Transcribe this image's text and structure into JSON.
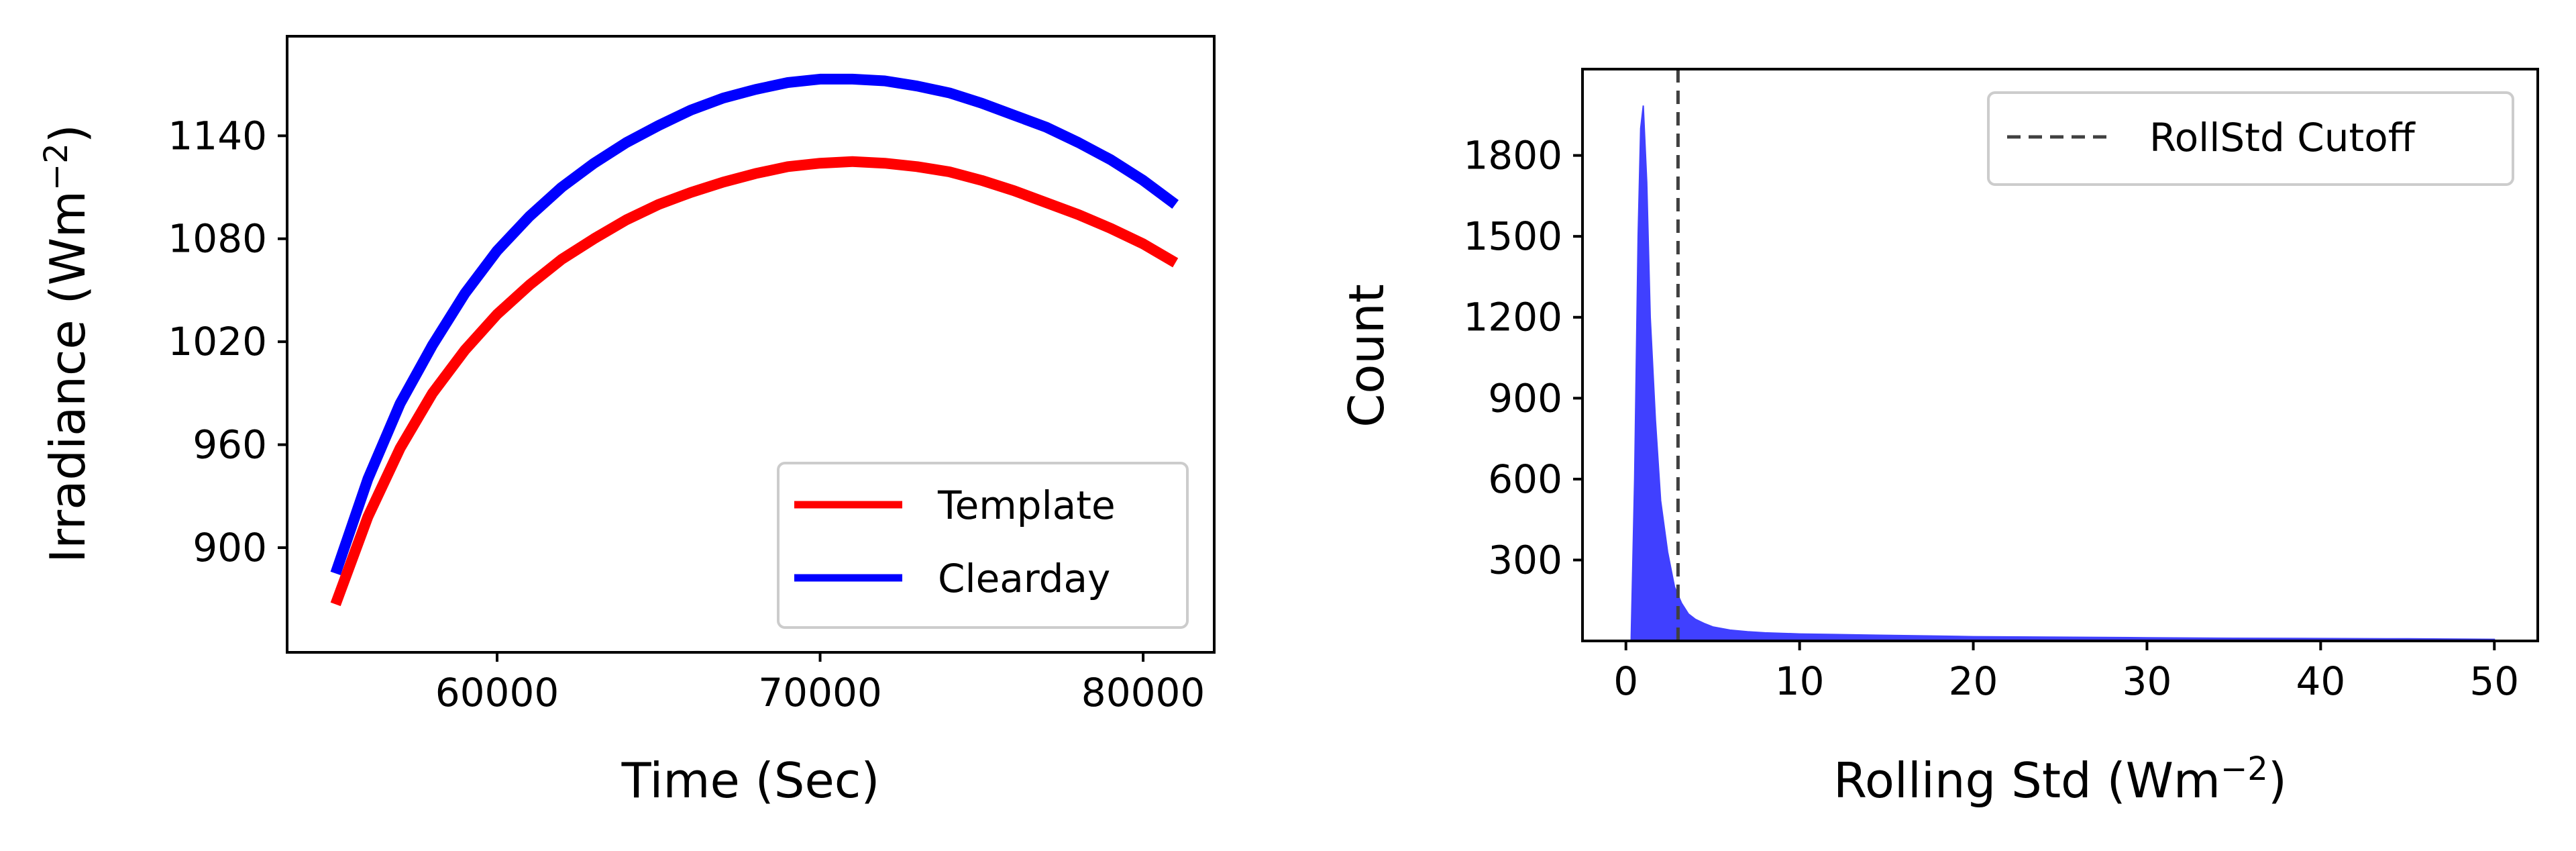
{
  "chart_data": [
    {
      "type": "line",
      "xlabel": "Time (Sec)",
      "ylabel": {
        "prefix": "Irradiance (Wm",
        "sup": "−2",
        "suffix": ")"
      },
      "xlim": [
        53500,
        82200
      ],
      "ylim": [
        839,
        1198
      ],
      "xticks": [
        60000,
        70000,
        80000
      ],
      "yticks": [
        900,
        960,
        1020,
        1080,
        1140
      ],
      "legend_position": "lower-right",
      "series": [
        {
          "name": "Template",
          "color": "#ff0000",
          "x": [
            55000,
            56000,
            57000,
            58000,
            59000,
            60000,
            61000,
            62000,
            63000,
            64000,
            65000,
            66000,
            67000,
            68000,
            69000,
            70000,
            71000,
            72000,
            73000,
            74000,
            75000,
            76000,
            77000,
            78000,
            79000,
            80000,
            81000
          ],
          "y": [
            867,
            918,
            958,
            990,
            1015,
            1036,
            1053,
            1068,
            1080,
            1091,
            1100,
            1107,
            1113,
            1118,
            1122,
            1124,
            1125,
            1124,
            1122,
            1119,
            1114,
            1108,
            1101,
            1094,
            1086,
            1077,
            1066
          ]
        },
        {
          "name": "Clearday",
          "color": "#0000ff",
          "x": [
            55000,
            56000,
            57000,
            58000,
            59000,
            60000,
            61000,
            62000,
            63000,
            64000,
            65000,
            66000,
            67000,
            68000,
            69000,
            70000,
            71000,
            72000,
            73000,
            74000,
            75000,
            76000,
            77000,
            78000,
            79000,
            80000,
            81000
          ],
          "y": [
            885,
            940,
            984,
            1018,
            1048,
            1073,
            1093,
            1110,
            1124,
            1136,
            1146,
            1155,
            1162,
            1167,
            1171,
            1173,
            1173,
            1172,
            1169,
            1165,
            1159,
            1152,
            1145,
            1136,
            1126,
            1114,
            1100
          ]
        }
      ]
    },
    {
      "type": "histogram",
      "xlabel": {
        "prefix": "Rolling Std (Wm",
        "sup": "−2",
        "suffix": ")"
      },
      "ylabel": "Count",
      "xlim": [
        -2.5,
        52.5
      ],
      "ylim": [
        0,
        2120
      ],
      "xticks": [
        0,
        10,
        20,
        30,
        40,
        50
      ],
      "yticks": [
        300,
        600,
        900,
        1200,
        1500,
        1800
      ],
      "color": "#4040ff",
      "legend_position": "upper-right",
      "hist_x": [
        0.3,
        0.5,
        0.7,
        0.85,
        1.0,
        1.2,
        1.4,
        1.7,
        2.0,
        2.4,
        2.8,
        3.2,
        3.6,
        4.0,
        4.5,
        5.0,
        6.0,
        7.0,
        8.0,
        9.0,
        10,
        12,
        14,
        16,
        18,
        20,
        25,
        30,
        35,
        40,
        45,
        50
      ],
      "hist_y": [
        0,
        600,
        1500,
        1900,
        1985,
        1700,
        1200,
        820,
        520,
        330,
        200,
        140,
        100,
        80,
        65,
        52,
        40,
        34,
        30,
        28,
        26,
        24,
        22,
        20,
        18,
        16,
        14,
        12,
        10,
        9,
        8,
        6
      ],
      "cutoff": {
        "label": "RollStd Cutoff",
        "x": 3.0
      }
    }
  ]
}
